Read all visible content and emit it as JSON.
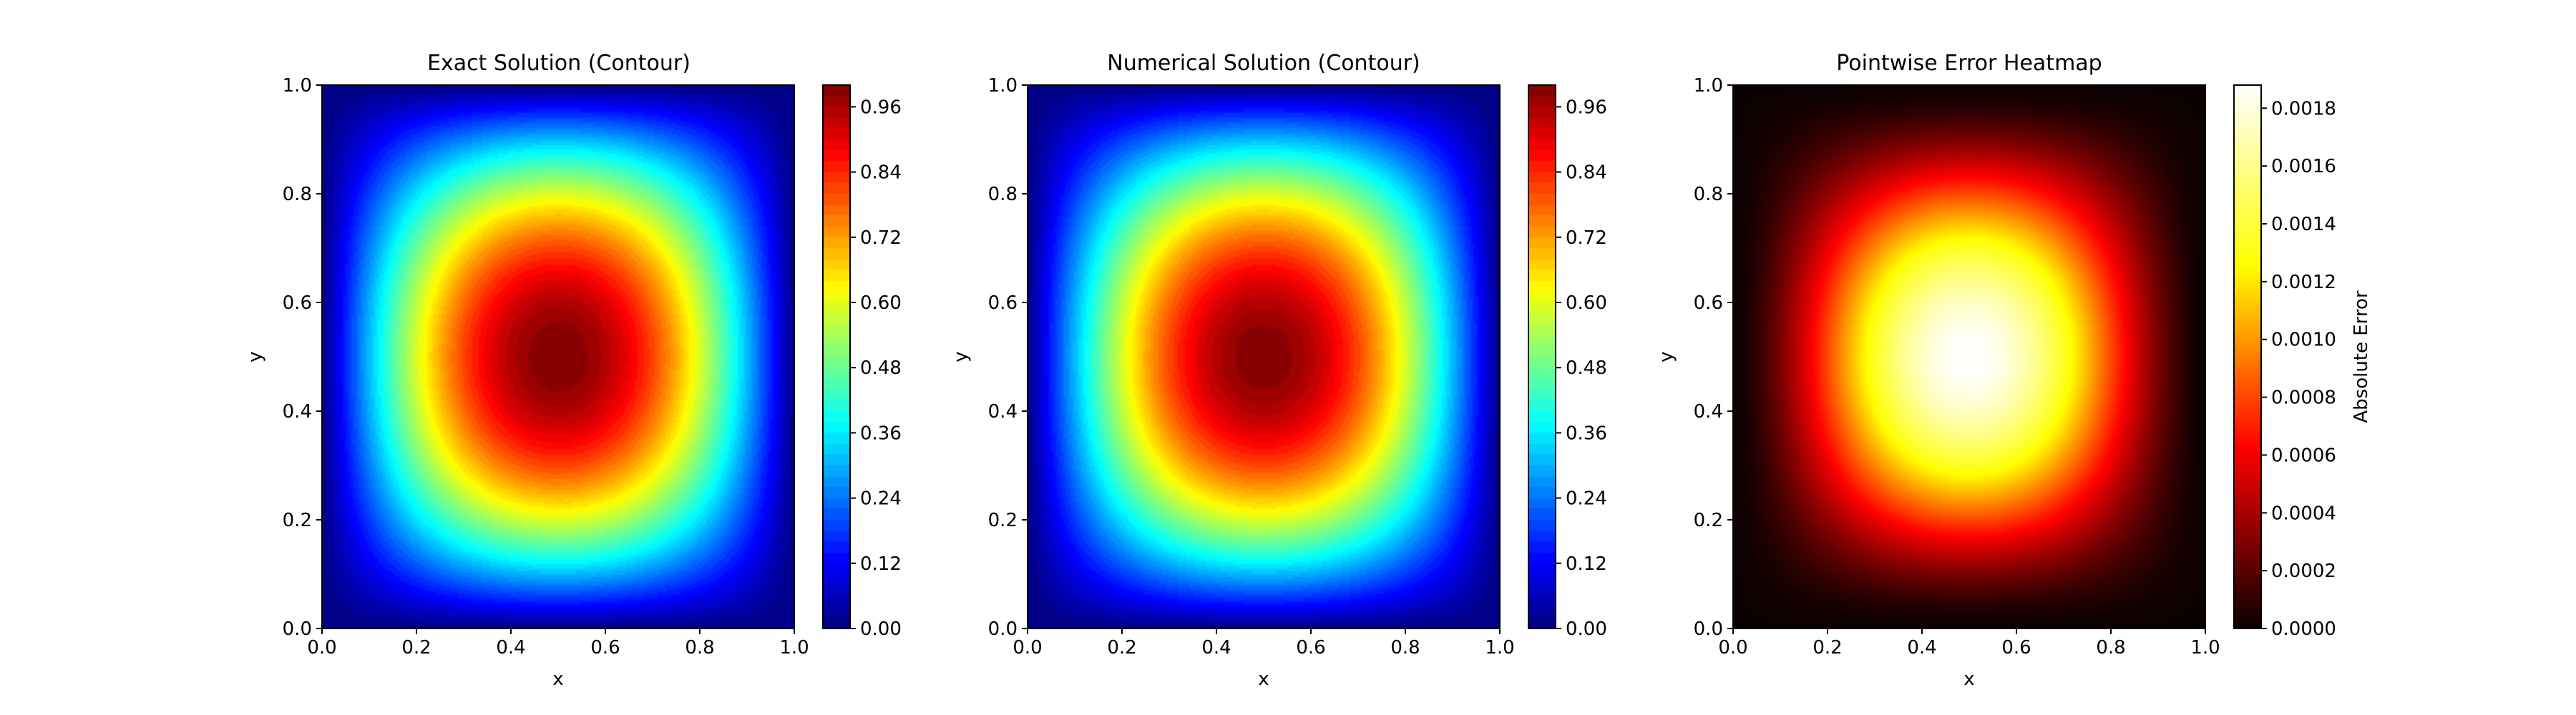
{
  "chart_data": [
    {
      "type": "heatmap",
      "title": "Exact Solution (Contour)",
      "xlabel": "x",
      "ylabel": "y",
      "xlim": [
        0,
        1
      ],
      "ylim": [
        0,
        1
      ],
      "xticks": [
        "0.0",
        "0.2",
        "0.4",
        "0.6",
        "0.8",
        "1.0"
      ],
      "yticks": [
        "0.0",
        "0.2",
        "0.4",
        "0.6",
        "0.8",
        "1.0"
      ],
      "field": "sin(pi*x)*sin(pi*y)",
      "value_min": 0.0,
      "value_max": 1.0,
      "peak": {
        "x": 0.5,
        "y": 0.5,
        "value": 1.0
      },
      "colormap": "jet",
      "filled_contour_levels": 50,
      "colorbar": {
        "label": "",
        "range": [
          0,
          1.0
        ],
        "ticks": [
          "0.00",
          "0.12",
          "0.24",
          "0.36",
          "0.48",
          "0.60",
          "0.72",
          "0.84",
          "0.96"
        ]
      }
    },
    {
      "type": "heatmap",
      "title": "Numerical Solution (Contour)",
      "xlabel": "x",
      "ylabel": "y",
      "xlim": [
        0,
        1
      ],
      "ylim": [
        0,
        1
      ],
      "xticks": [
        "0.0",
        "0.2",
        "0.4",
        "0.6",
        "0.8",
        "1.0"
      ],
      "yticks": [
        "0.0",
        "0.2",
        "0.4",
        "0.6",
        "0.8",
        "1.0"
      ],
      "field": "sin(pi*x)*sin(pi*y)",
      "value_min": 0.0,
      "value_max": 0.998,
      "peak": {
        "x": 0.5,
        "y": 0.5,
        "value": 0.998
      },
      "colormap": "jet",
      "filled_contour_levels": 50,
      "colorbar": {
        "label": "",
        "range": [
          0,
          1.0
        ],
        "ticks": [
          "0.00",
          "0.12",
          "0.24",
          "0.36",
          "0.48",
          "0.60",
          "0.72",
          "0.84",
          "0.96"
        ]
      }
    },
    {
      "type": "heatmap",
      "title": "Pointwise Error Heatmap",
      "xlabel": "x",
      "ylabel": "y",
      "xlim": [
        0,
        1
      ],
      "ylim": [
        0,
        1
      ],
      "xticks": [
        "0.0",
        "0.2",
        "0.4",
        "0.6",
        "0.8",
        "1.0"
      ],
      "yticks": [
        "0.0",
        "0.2",
        "0.4",
        "0.6",
        "0.8",
        "1.0"
      ],
      "field": "abs error, peak at center",
      "value_min": 0.0,
      "value_max": 0.00188,
      "peak": {
        "x": 0.5,
        "y": 0.5,
        "value": 0.00188
      },
      "colormap": "hot",
      "filled_contour_levels": 0,
      "colorbar": {
        "label": "Absolute Error",
        "range": [
          0,
          0.00188
        ],
        "ticks": [
          "0.0000",
          "0.0002",
          "0.0004",
          "0.0006",
          "0.0008",
          "0.0010",
          "0.0012",
          "0.0014",
          "0.0016",
          "0.0018"
        ]
      }
    }
  ],
  "colors": {
    "jet": [
      "#00007f",
      "#0000ff",
      "#007fff",
      "#00ffff",
      "#7fff7f",
      "#ffff00",
      "#ff7f00",
      "#ff0000",
      "#7f0000"
    ],
    "hot": [
      "#0b0000",
      "#ff0000",
      "#ffff00",
      "#ffffff"
    ]
  }
}
